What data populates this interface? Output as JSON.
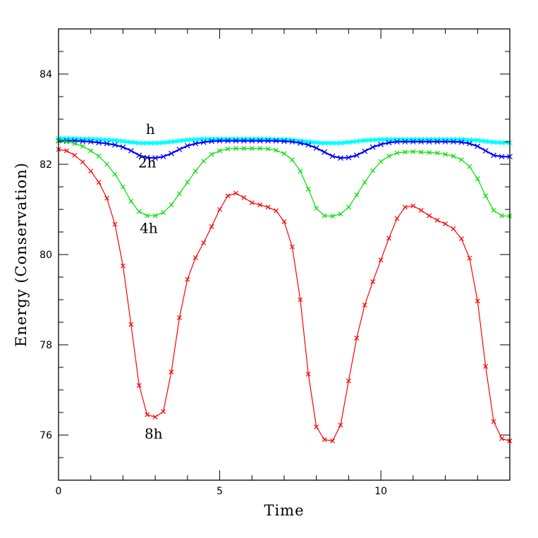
{
  "chart_data": {
    "type": "line",
    "xlabel": "Time",
    "ylabel": "Energy (Conservation)",
    "xlim": [
      0,
      14
    ],
    "ylim": [
      75,
      85
    ],
    "x_ticks": [
      0,
      5,
      10
    ],
    "x_tick_labels": [
      "0",
      "5",
      "10"
    ],
    "y_ticks": [
      76,
      78,
      80,
      82,
      84
    ],
    "y_tick_labels": [
      "76",
      "78",
      "80",
      "82",
      "84"
    ],
    "grid": false,
    "annotations": [
      {
        "text": "h",
        "x": 2.85,
        "y": 82.67
      },
      {
        "text": "2h",
        "x": 2.75,
        "y": 81.93
      },
      {
        "text": "4h",
        "x": 2.8,
        "y": 80.48
      },
      {
        "text": "8h",
        "x": 2.95,
        "y": 75.92
      }
    ],
    "series": [
      {
        "color": "#00ffff",
        "marker": "cross",
        "x": [
          0.0,
          0.25,
          0.5,
          0.75,
          1.0,
          1.25,
          1.5,
          1.75,
          2.0,
          2.25,
          2.5,
          2.75,
          3.0,
          3.25,
          3.5,
          3.75,
          4.0,
          4.25,
          4.5,
          4.75,
          5.0,
          5.25,
          5.5,
          5.75,
          6.0,
          6.25,
          6.5,
          6.75,
          7.0,
          7.25,
          7.5,
          7.75,
          8.0,
          8.25,
          8.5,
          8.75,
          9.0,
          9.25,
          9.5,
          9.75,
          10.0,
          10.25,
          10.5,
          10.75,
          11.0,
          11.25,
          11.5,
          11.75,
          12.0,
          12.25,
          12.5,
          12.75,
          13.0,
          13.25,
          13.5,
          13.75,
          14.0
        ],
        "y": [
          82.57,
          82.57,
          82.57,
          82.56,
          82.56,
          82.55,
          82.54,
          82.53,
          82.51,
          82.49,
          82.47,
          82.47,
          82.47,
          82.48,
          82.5,
          82.52,
          82.54,
          82.55,
          82.56,
          82.56,
          82.56,
          82.56,
          82.56,
          82.56,
          82.56,
          82.56,
          82.56,
          82.55,
          82.55,
          82.54,
          82.52,
          82.5,
          82.48,
          82.47,
          82.47,
          82.47,
          82.49,
          82.51,
          82.53,
          82.54,
          82.55,
          82.55,
          82.55,
          82.55,
          82.55,
          82.55,
          82.55,
          82.55,
          82.55,
          82.55,
          82.55,
          82.54,
          82.53,
          82.51,
          82.49,
          82.48,
          82.48
        ]
      },
      {
        "color": "#0000ff",
        "marker": "cross",
        "x": [
          0.0,
          0.25,
          0.5,
          0.75,
          1.0,
          1.25,
          1.5,
          1.75,
          2.0,
          2.25,
          2.5,
          2.75,
          3.0,
          3.25,
          3.5,
          3.75,
          4.0,
          4.25,
          4.5,
          4.75,
          5.0,
          5.25,
          5.5,
          5.75,
          6.0,
          6.25,
          6.5,
          6.75,
          7.0,
          7.25,
          7.5,
          7.75,
          8.0,
          8.25,
          8.5,
          8.75,
          9.0,
          9.25,
          9.5,
          9.75,
          10.0,
          10.25,
          10.5,
          10.75,
          11.0,
          11.25,
          11.5,
          11.75,
          12.0,
          12.25,
          12.5,
          12.75,
          13.0,
          13.25,
          13.5,
          13.75,
          14.0
        ],
        "y": [
          82.52,
          82.52,
          82.52,
          82.51,
          82.5,
          82.48,
          82.46,
          82.43,
          82.38,
          82.3,
          82.2,
          82.15,
          82.14,
          82.17,
          82.24,
          82.33,
          82.41,
          82.46,
          82.49,
          82.51,
          82.52,
          82.52,
          82.52,
          82.52,
          82.52,
          82.52,
          82.52,
          82.52,
          82.51,
          82.5,
          82.47,
          82.43,
          82.36,
          82.27,
          82.18,
          82.14,
          82.15,
          82.2,
          82.29,
          82.38,
          82.44,
          82.48,
          82.5,
          82.5,
          82.5,
          82.5,
          82.5,
          82.5,
          82.5,
          82.5,
          82.49,
          82.46,
          82.4,
          82.3,
          82.2,
          82.17,
          82.17
        ]
      },
      {
        "color": "#00e000",
        "marker": "cross",
        "x": [
          0.0,
          0.25,
          0.5,
          0.75,
          1.0,
          1.25,
          1.5,
          1.75,
          2.0,
          2.25,
          2.5,
          2.75,
          3.0,
          3.25,
          3.5,
          3.75,
          4.0,
          4.25,
          4.5,
          4.75,
          5.0,
          5.25,
          5.5,
          5.75,
          6.0,
          6.25,
          6.5,
          6.75,
          7.0,
          7.25,
          7.5,
          7.75,
          8.0,
          8.25,
          8.5,
          8.75,
          9.0,
          9.25,
          9.5,
          9.75,
          10.0,
          10.25,
          10.5,
          10.75,
          11.0,
          11.25,
          11.5,
          11.75,
          12.0,
          12.25,
          12.5,
          12.75,
          13.0,
          13.25,
          13.5,
          13.75,
          14.0
        ],
        "y": [
          82.52,
          82.5,
          82.46,
          82.4,
          82.3,
          82.18,
          82.0,
          81.78,
          81.5,
          81.18,
          80.95,
          80.86,
          80.86,
          80.93,
          81.1,
          81.35,
          81.6,
          81.85,
          82.07,
          82.22,
          82.3,
          82.34,
          82.35,
          82.35,
          82.35,
          82.35,
          82.34,
          82.31,
          82.24,
          82.1,
          81.85,
          81.45,
          81.02,
          80.86,
          80.85,
          80.9,
          81.05,
          81.32,
          81.6,
          81.86,
          82.06,
          82.18,
          82.25,
          82.27,
          82.28,
          82.27,
          82.26,
          82.25,
          82.22,
          82.18,
          82.1,
          81.95,
          81.68,
          81.3,
          80.98,
          80.86,
          80.85
        ]
      },
      {
        "color": "#ff0000",
        "marker": "cross",
        "x": [
          0.0,
          0.25,
          0.5,
          0.75,
          1.0,
          1.25,
          1.5,
          1.75,
          2.0,
          2.25,
          2.5,
          2.75,
          3.0,
          3.25,
          3.5,
          3.75,
          4.0,
          4.25,
          4.5,
          4.75,
          5.0,
          5.25,
          5.5,
          5.75,
          6.0,
          6.25,
          6.5,
          6.75,
          7.0,
          7.25,
          7.5,
          7.75,
          8.0,
          8.25,
          8.5,
          8.75,
          9.0,
          9.25,
          9.5,
          9.75,
          10.0,
          10.25,
          10.5,
          10.75,
          11.0,
          11.25,
          11.5,
          11.75,
          12.0,
          12.25,
          12.5,
          12.75,
          13.0,
          13.25,
          13.5,
          13.75,
          14.0
        ],
        "y": [
          82.33,
          82.3,
          82.2,
          82.05,
          81.85,
          81.6,
          81.25,
          80.67,
          79.75,
          78.45,
          77.1,
          76.45,
          76.4,
          76.52,
          77.4,
          78.6,
          79.45,
          79.93,
          80.26,
          80.62,
          81.0,
          81.3,
          81.36,
          81.26,
          81.15,
          81.1,
          81.05,
          80.97,
          80.73,
          80.17,
          79.0,
          77.35,
          76.18,
          75.9,
          75.87,
          76.22,
          77.2,
          78.15,
          78.88,
          79.4,
          79.88,
          80.36,
          80.8,
          81.05,
          81.08,
          80.98,
          80.86,
          80.76,
          80.68,
          80.57,
          80.35,
          79.92,
          78.97,
          77.52,
          76.3,
          75.92,
          75.87
        ]
      }
    ]
  }
}
